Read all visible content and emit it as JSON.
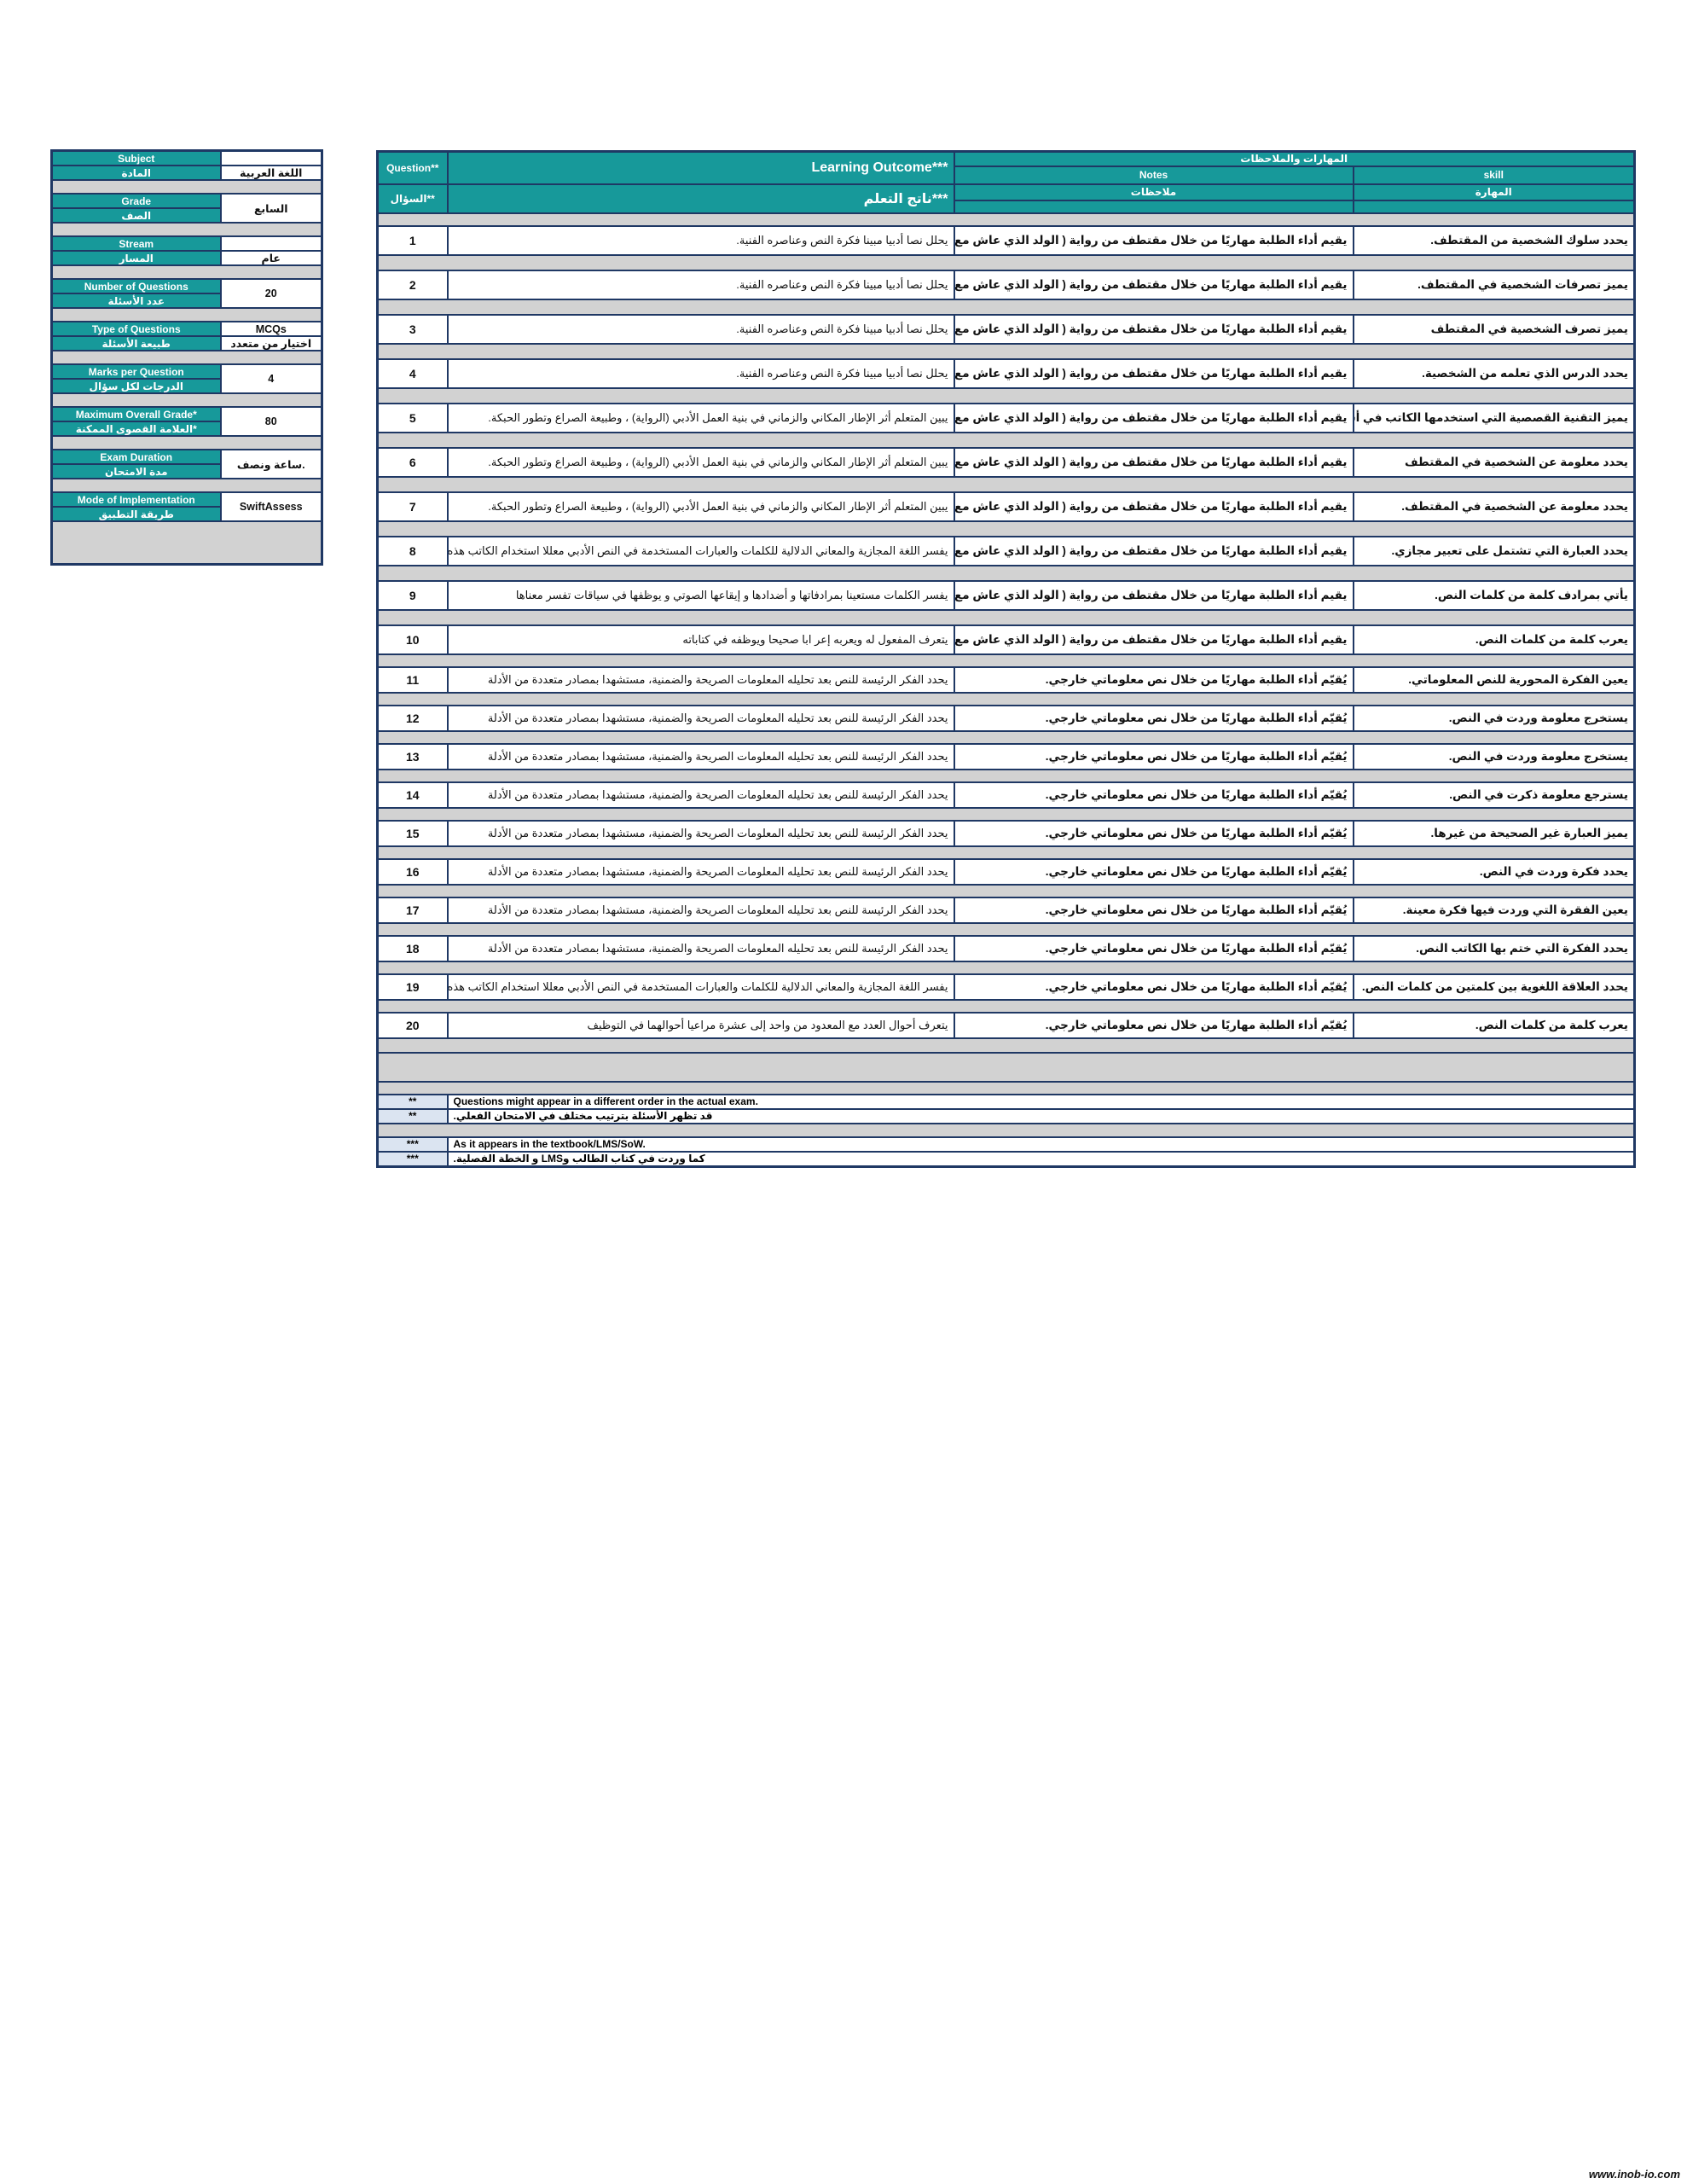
{
  "panel": {
    "items": [
      {
        "label_en": "Subject",
        "label_ar": "المادة",
        "value_en": "",
        "value_ar": "اللغة العربية"
      },
      {
        "label_en": "Grade",
        "label_ar": "الصف",
        "value": "السابع"
      },
      {
        "label_en": "Stream",
        "label_ar": "المسار",
        "value_en": "",
        "value_ar": "عام"
      },
      {
        "label_en": "Number of Questions",
        "label_ar": "عدد الأسئلة",
        "value": "20"
      },
      {
        "label_en": "Type of Questions",
        "label_ar": "طبيعة الأسئلة",
        "value_en": "MCQs",
        "value_ar": "اختيار من متعدد"
      },
      {
        "label_en": "Marks per Question",
        "label_ar": "الدرجات لكل سؤال",
        "value": "4"
      },
      {
        "label_en": "Maximum Overall Grade*",
        "label_ar": "العلامة القصوى الممكنة*",
        "value": "80"
      },
      {
        "label_en": "Exam Duration",
        "label_ar": "مدة الامتحان",
        "value": "ساعة ونصف."
      },
      {
        "label_en": "Mode of Implementation",
        "label_ar": "طريقة التطبيق",
        "value": "SwiftAssess"
      }
    ]
  },
  "table": {
    "header": {
      "question_en": "Question**",
      "question_ar": "السؤال**",
      "outcome_en": "Learning Outcome***",
      "outcome_ar": "ناتج التعلم***",
      "group_ar": "المهارات والملاحظات",
      "notes_en": "Notes",
      "notes_ar": "ملاحظات",
      "skill_en": "skill",
      "skill_ar": "المهارة"
    },
    "rows": [
      {
        "q": "1",
        "outcome": "يحلل نصا أدبيا مبينا فكرة النص وعناصره الفنية.",
        "notes": "يقيم أداء الطلبة مهاريًا من خلال مقتطف من رواية ( الولد الذي عاش مع النعام).",
        "skill": "يحدد سلوك الشخصية من المقتطف."
      },
      {
        "q": "2",
        "outcome": "يحلل نصا أدبيا مبينا فكرة النص وعناصره الفنية.",
        "notes": "يقيم أداء الطلبة مهاريًا من خلال مقتطف من رواية ( الولد الذي عاش مع النعام).",
        "skill": "يميز تصرفات الشخصية في المقتطف."
      },
      {
        "q": "3",
        "outcome": "يحلل نصا أدبيا مبينا فكرة النص وعناصره الفنية.",
        "notes": "يقيم أداء الطلبة مهاريًا من خلال مقتطف من رواية ( الولد الذي عاش مع النعام).",
        "skill": "يميز تصرف الشخصية في المقتطف"
      },
      {
        "q": "4",
        "outcome": "يحلل نصا أدبيا مبينا فكرة النص وعناصره الفنية.",
        "notes": "يقيم أداء الطلبة مهاريًا من خلال مقتطف من رواية ( الولد الذي عاش مع النعام).",
        "skill": "يحدد الدرس الذي تعلمه من الشخصية."
      },
      {
        "q": "5",
        "outcome": "يبين المتعلم أثر الإطار المكاني والزماني في بنية العمل الأدبي (الرواية) ، وطبيعة الصراع وتطور الحبكة.",
        "notes": "يقيم أداء الطلبة مهاريًا من خلال مقتطف من رواية ( الولد الذي عاش مع النعام).",
        "skill": "يميز التقنية القصصية التي استخدمها الكاتب في أسطر محددة"
      },
      {
        "q": "6",
        "outcome": "يبين المتعلم أثر الإطار المكاني والزماني في بنية العمل الأدبي (الرواية) ، وطبيعة الصراع وتطور الحبكة.",
        "notes": "يقيم أداء الطلبة مهاريًا من خلال مقتطف من رواية ( الولد الذي عاش مع النعام).",
        "skill": "يحدد معلومة عن الشخصية في المقتطف"
      },
      {
        "q": "7",
        "outcome": "يبين المتعلم أثر الإطار المكاني والزماني في بنية العمل الأدبي (الرواية) ، وطبيعة الصراع وتطور الحبكة.",
        "notes": "يقيم أداء الطلبة مهاريًا من خلال مقتطف من رواية ( الولد الذي عاش مع النعام).",
        "skill": "يحدد معلومة عن الشخصية في المقتطف."
      },
      {
        "q": "8",
        "outcome": "يفسر اللغة المجازية والمعاني الدلالية للكلمات والعبارات المستخدمة في النص الأدبي معللا استخدام الكاتب هذه اللغة",
        "notes": "يقيم أداء الطلبة مهاريًا من خلال مقتطف من رواية ( الولد الذي عاش مع النعام).",
        "skill": "يحدد العبارة التي تشتمل على تعبير مجازي."
      },
      {
        "q": "9",
        "outcome": "يفسر الكلمات مستعينا بمرادفاتها و أضدادها و إيقاعها الصوتي و يوظفها في سياقات تفسر معناها",
        "notes": "يقيم أداء الطلبة مهاريًا من خلال مقتطف من رواية ( الولد الذي عاش مع النعام).",
        "skill": "يأتي بمرادف كلمة من كلمات النص."
      },
      {
        "q": "10",
        "outcome": "يتعرف المفعول له ويعربه إعر ابا صحيحا ويوظفه في كتاباته",
        "notes": "يقيم أداء الطلبة مهاريًا من خلال مقتطف من رواية ( الولد الذي عاش مع النعام).",
        "skill": "يعرب كلمة من كلمات النص."
      },
      {
        "q": "11",
        "outcome": "يحدد الفكر الرئيسة للنص بعد تحليله المعلومات الصريحة والضمنية، مستشهدا بمصادر متعددة من الأدلة",
        "notes": "يُقيّم أداء الطلبة مهاريًا من خلال نص معلوماتي خارجي.",
        "skill": "يعين الفكرة المحورية للنص المعلوماتي."
      },
      {
        "q": "12",
        "outcome": "يحدد الفكر الرئيسة للنص بعد تحليله المعلومات الصريحة والضمنية، مستشهدا بمصادر متعددة من الأدلة",
        "notes": "يُقيّم أداء الطلبة مهاريًا من خلال نص معلوماتي خارجي.",
        "skill": "يستخرج معلومة وردت في النص."
      },
      {
        "q": "13",
        "outcome": "يحدد الفكر الرئيسة للنص بعد تحليله المعلومات الصريحة والضمنية، مستشهدا بمصادر متعددة من الأدلة",
        "notes": "يُقيّم أداء الطلبة مهاريًا من خلال نص معلوماتي خارجي.",
        "skill": "يستخرج معلومة وردت في النص."
      },
      {
        "q": "14",
        "outcome": "يحدد الفكر الرئيسة للنص بعد تحليله المعلومات الصريحة والضمنية، مستشهدا بمصادر متعددة من الأدلة",
        "notes": "يُقيّم أداء الطلبة مهاريًا من خلال نص معلوماتي خارجي.",
        "skill": "يسترجع معلومة ذكرت في النص."
      },
      {
        "q": "15",
        "outcome": "يحدد الفكر الرئيسة للنص بعد تحليله المعلومات الصريحة والضمنية، مستشهدا بمصادر متعددة من الأدلة",
        "notes": "يُقيّم أداء الطلبة مهاريًا من خلال نص معلوماتي خارجي.",
        "skill": "يميز العبارة غير الصحيحة من غيرها."
      },
      {
        "q": "16",
        "outcome": "يحدد الفكر الرئيسة للنص بعد تحليله المعلومات الصريحة والضمنية، مستشهدا بمصادر متعددة من الأدلة",
        "notes": "يُقيّم أداء الطلبة مهاريًا من خلال نص معلوماتي خارجي.",
        "skill": "يحدد فكرة وردت في النص."
      },
      {
        "q": "17",
        "outcome": "يحدد الفكر الرئيسة للنص بعد تحليله المعلومات الصريحة والضمنية، مستشهدا بمصادر متعددة من الأدلة",
        "notes": "يُقيّم أداء الطلبة مهاريًا من خلال نص معلوماتي خارجي.",
        "skill": "يعين الفقرة التي وردت فيها فكرة معينة."
      },
      {
        "q": "18",
        "outcome": "يحدد الفكر الرئيسة للنص بعد تحليله المعلومات الصريحة والضمنية، مستشهدا بمصادر متعددة من الأدلة",
        "notes": "يُقيّم أداء الطلبة مهاريًا من خلال نص معلوماتي خارجي.",
        "skill": "يحدد الفكرة التي ختم بها الكاتب النص."
      },
      {
        "q": "19",
        "outcome": "يفسر اللغة المجازية والمعاني الدلالية للكلمات والعبارات المستخدمة في النص الأدبي معللا استخدام الكاتب هذه اللغة",
        "notes": "يُقيّم أداء الطلبة مهاريًا من خلال نص معلوماتي خارجي.",
        "skill": "يحدد العلاقة اللغوية بين كلمتين من كلمات النص."
      },
      {
        "q": "20",
        "outcome": "يتعرف أحوال العدد مع المعدود من واحد إلى عشرة مراعيا أحوالهما في التوظيف",
        "notes": "يُقيّم أداء الطلبة مهاريًا من خلال نص معلوماتي خارجي.",
        "skill": "يعرب كلمة من كلمات النص."
      }
    ]
  },
  "footnotes": [
    {
      "mark": "**",
      "text": "Questions might appear in a different order in the actual exam.",
      "lang": "en"
    },
    {
      "mark": "**",
      "text": "قد تظهر الأسئلة بترتيب مختلف في الامتحان الفعلي.",
      "lang": "ar"
    },
    {
      "mark": "***",
      "text": "As it appears in the textbook/LMS/SoW.",
      "lang": "en"
    },
    {
      "mark": "***",
      "text": "كما وردت في كتاب الطالب وLMS و الخطة الفصلية.",
      "lang": "ar"
    }
  ],
  "watermark": "www.inob-io.com",
  "colors": {
    "header": "#17999a",
    "border": "#1f3864",
    "spacer": "#d2d2d2"
  }
}
